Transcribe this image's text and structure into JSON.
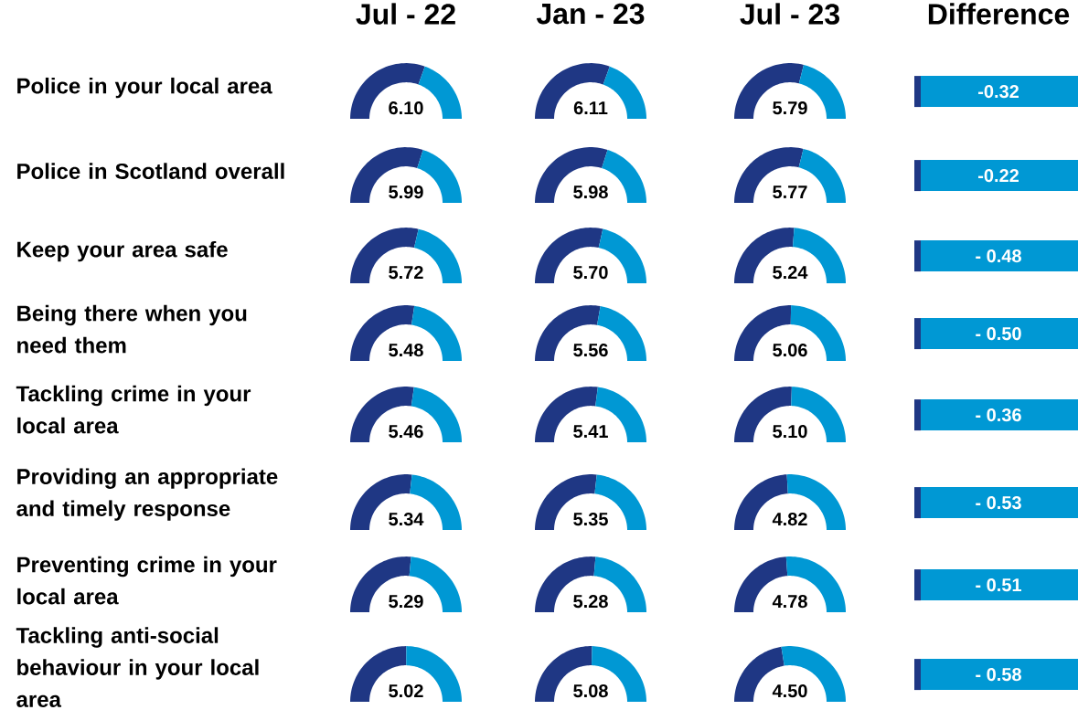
{
  "chart_data": {
    "type": "other",
    "categories": [
      "Police in your local area",
      "Police in Scotland overall",
      "Keep your area safe",
      "Being there when you need them",
      "Tackling crime in your local area",
      "Providing an appropriate and timely response",
      "Preventing crime in your local area",
      "Tackling anti-social behaviour in your local area"
    ],
    "series": [
      {
        "name": "Jul - 22",
        "values": [
          6.1,
          5.99,
          5.72,
          5.48,
          5.46,
          5.34,
          5.29,
          5.02
        ],
        "value_labels": [
          "6.10",
          "5.99",
          "5.72",
          "5.48",
          "5.46",
          "5.34",
          "5.29",
          "5.02"
        ]
      },
      {
        "name": "Jan - 23",
        "values": [
          6.11,
          5.98,
          5.7,
          5.56,
          5.41,
          5.35,
          5.28,
          5.08
        ],
        "value_labels": [
          "6.11",
          "5.98",
          "5.70",
          "5.56",
          "5.41",
          "5.35",
          "5.28",
          "5.08"
        ]
      },
      {
        "name": "Jul - 23",
        "values": [
          5.79,
          5.77,
          5.24,
          5.06,
          5.1,
          4.82,
          4.78,
          4.5
        ],
        "value_labels": [
          "5.79",
          "5.77",
          "5.24",
          "5.06",
          "5.10",
          "4.82",
          "4.78",
          "4.50"
        ]
      },
      {
        "name": "Difference",
        "values": [
          -0.32,
          -0.22,
          -0.48,
          -0.5,
          -0.36,
          -0.53,
          -0.51,
          -0.58
        ],
        "value_labels": [
          "-0.32",
          "-0.22",
          "- 0.48",
          "- 0.50",
          "- 0.36",
          "- 0.53",
          "- 0.51",
          "- 0.58"
        ]
      }
    ]
  }
}
